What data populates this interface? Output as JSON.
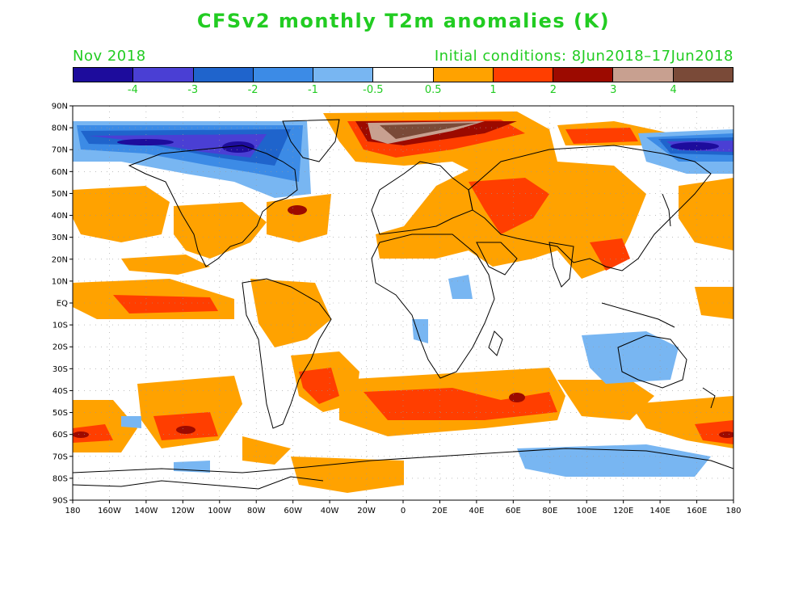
{
  "title": "CFSv2 monthly T2m anomalies (K)",
  "valid_month": "Nov 2018",
  "init_conditions": "Initial conditions: 8Jun2018–17Jun2018",
  "colorbar": {
    "colors": [
      "#1d0c9c",
      "#4a3fd4",
      "#1f64cc",
      "#3c8be6",
      "#78b6f2",
      "#ffffff",
      "#ffa200",
      "#ff3e00",
      "#9c0a00",
      "#c8a090",
      "#7a4a38"
    ],
    "labels": [
      "-4",
      "-3",
      "-2",
      "-1",
      "-0.5",
      "0.5",
      "1",
      "2",
      "3",
      "4"
    ]
  },
  "axes": {
    "lat_labels": [
      "90N",
      "80N",
      "70N",
      "60N",
      "50N",
      "40N",
      "30N",
      "20N",
      "10N",
      "EQ",
      "10S",
      "20S",
      "30S",
      "40S",
      "50S",
      "60S",
      "70S",
      "80S",
      "90S"
    ],
    "lon_labels": [
      "180",
      "160W",
      "140W",
      "120W",
      "100W",
      "80W",
      "60W",
      "40W",
      "20W",
      "0",
      "20E",
      "40E",
      "60E",
      "80E",
      "100E",
      "120E",
      "140E",
      "160E",
      "180"
    ]
  },
  "anomaly_features": [
    {
      "region": "Arctic Canada / Greenland",
      "anomaly": "cold",
      "level": "-4"
    },
    {
      "region": "East Siberian Sea / Chukchi",
      "anomaly": "cold",
      "level": "-4"
    },
    {
      "region": "Barents / Kara Sea",
      "anomaly": "warm",
      "level": "4"
    },
    {
      "region": "Central Asia",
      "anomaly": "warm",
      "level": "2"
    },
    {
      "region": "Equatorial East Pacific",
      "anomaly": "warm",
      "level": "2"
    },
    {
      "region": "Southern Ocean",
      "anomaly": "warm",
      "level": "3"
    },
    {
      "region": "Australia",
      "anomaly": "cold",
      "level": "-1"
    },
    {
      "region": "Antarctica (Ross/Amundsen)",
      "anomaly": "cold",
      "level": "-1"
    }
  ]
}
